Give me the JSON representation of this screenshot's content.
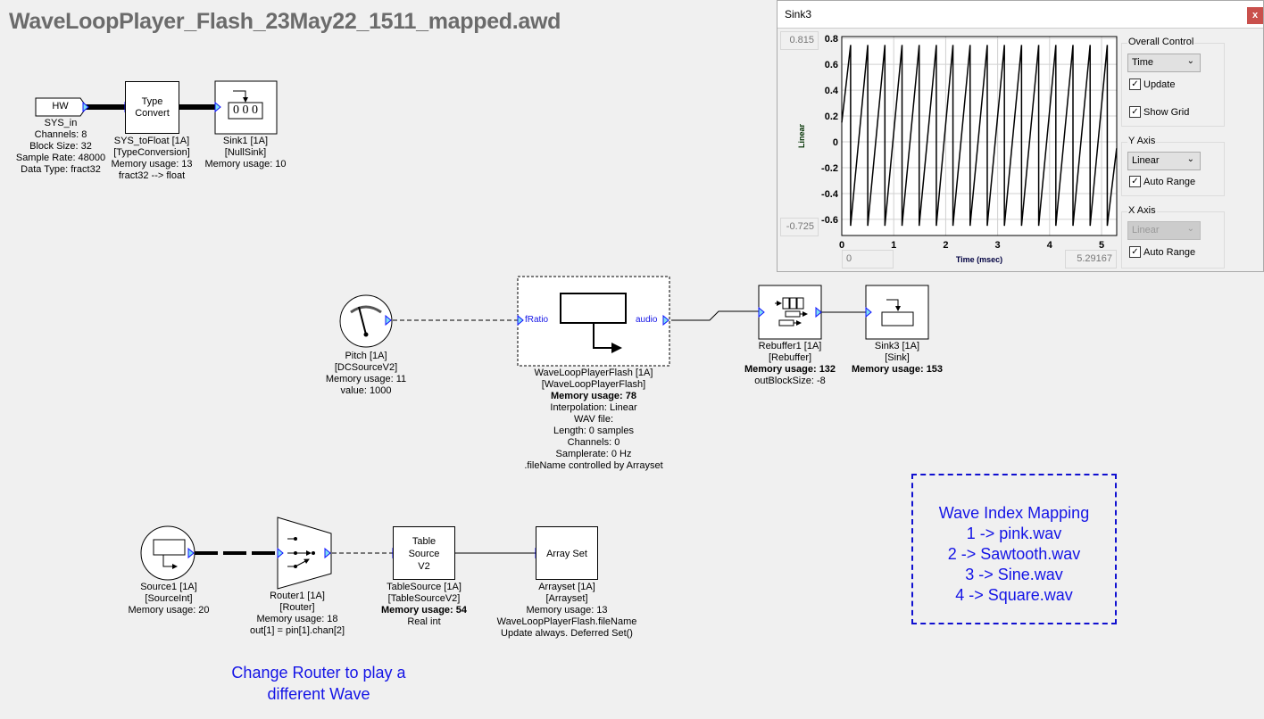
{
  "title": "WaveLoopPlayer_Flash_23May22_1511_mapped.awd",
  "blocks": {
    "sys_in": {
      "icon_text": "HW",
      "lines": [
        "SYS_in",
        "Channels: 8",
        "Block Size: 32",
        "Sample Rate: 48000",
        "Data Type: fract32"
      ]
    },
    "sys_tofloat": {
      "icon_text": [
        "Type",
        "Convert"
      ],
      "lines": [
        "SYS_toFloat [1A]",
        "[TypeConversion]",
        "Memory usage: 13",
        "fract32 --> float"
      ]
    },
    "sink1": {
      "icon_text": "0 0 0",
      "lines": [
        "Sink1 [1A]",
        "[NullSink]",
        "Memory usage: 10"
      ]
    },
    "pitch": {
      "lines": [
        "Pitch [1A]",
        "[DCSourceV2]",
        "Memory usage: 11",
        "value: 1000"
      ]
    },
    "waveloop": {
      "pin_in": "fRatio",
      "pin_out": "audio",
      "lines": [
        "WaveLoopPlayerFlash [1A]",
        "[WaveLoopPlayerFlash]"
      ],
      "memory": "Memory usage: 78",
      "details": [
        "Interpolation: Linear",
        "WAV file:",
        "Length: 0 samples",
        "Channels: 0",
        "Samplerate: 0 Hz",
        ".fileName controlled by Arrayset"
      ]
    },
    "rebuffer1": {
      "lines": [
        "Rebuffer1 [1A]",
        "[Rebuffer]"
      ],
      "memory": "Memory usage: 132",
      "details": [
        "outBlockSize: -8"
      ]
    },
    "sink3": {
      "lines": [
        "Sink3 [1A]",
        "[Sink]"
      ],
      "memory": "Memory usage: 153"
    },
    "source1": {
      "lines": [
        "Source1 [1A]",
        "[SourceInt]",
        "Memory usage: 20"
      ]
    },
    "router1": {
      "lines": [
        "Router1 [1A]",
        "[Router]",
        "Memory usage: 18",
        "out[1] = pin[1].chan[2]"
      ]
    },
    "tablesource": {
      "icon_text": [
        "Table",
        "Source",
        "V2"
      ],
      "lines": [
        "TableSource [1A]",
        "[TableSourceV2]"
      ],
      "memory": "Memory usage: 54",
      "details": [
        "Real int"
      ]
    },
    "arrayset": {
      "icon_text": "Array Set",
      "lines": [
        "Arrayset [1A]",
        "[Arrayset]",
        "Memory usage: 13",
        "WaveLoopPlayerFlash.fileName",
        "Update always. Deferred Set()"
      ]
    }
  },
  "note": {
    "lines": [
      "Wave Index Mapping",
      "1 -> pink.wav",
      "2 -> Sawtooth.wav",
      "3 -> Sine.wav",
      "4 -> Square.wav"
    ],
    "color": "#1414e6"
  },
  "hint": {
    "lines": [
      "Change Router to play a",
      "different Wave"
    ]
  },
  "scope_window": {
    "title": "Sink3",
    "close_label": "x",
    "y_max_box": "0.815",
    "y_min_box": "-0.725",
    "x_min_box": "0",
    "x_max_box": "5.29167",
    "overall_control": {
      "label": "Overall Control",
      "mode": "Time",
      "update_label": "Update",
      "update": true,
      "grid_label": "Show Grid",
      "grid": true
    },
    "y_axis": {
      "label": "Y Axis",
      "scale": "Linear",
      "auto_range_label": "Auto Range",
      "auto_range": true
    },
    "x_axis": {
      "label": "X Axis",
      "scale": "Linear",
      "disabled": true,
      "auto_range_label": "Auto Range",
      "auto_range": true
    }
  },
  "chart_data": {
    "type": "line",
    "title": "",
    "xlabel": "Time (msec)",
    "ylabel": "Linear",
    "xlim": [
      0,
      5.29167
    ],
    "ylim": [
      -0.725,
      0.815
    ],
    "xticks": [
      "0",
      "1",
      "2",
      "3",
      "4",
      "5"
    ],
    "yticks": [
      "0.8",
      "0.6",
      "0.4",
      "0.2",
      "0",
      "-0.2",
      "-0.4",
      "-0.6"
    ],
    "grid": true,
    "line_color": "#000000",
    "points": [
      [
        0,
        0.15
      ],
      [
        0.17,
        0.75
      ],
      [
        0.17,
        -0.65
      ],
      [
        0.5,
        0.75
      ],
      [
        0.5,
        -0.65
      ],
      [
        0.83,
        0.75
      ],
      [
        0.83,
        -0.65
      ],
      [
        1.16,
        0.75
      ],
      [
        1.16,
        -0.65
      ],
      [
        1.49,
        0.75
      ],
      [
        1.49,
        -0.65
      ],
      [
        1.82,
        0.75
      ],
      [
        1.82,
        -0.65
      ],
      [
        2.14,
        0.75
      ],
      [
        2.14,
        -0.65
      ],
      [
        2.47,
        0.75
      ],
      [
        2.47,
        -0.65
      ],
      [
        2.8,
        0.75
      ],
      [
        2.8,
        -0.65
      ],
      [
        3.13,
        0.75
      ],
      [
        3.13,
        -0.65
      ],
      [
        3.46,
        0.75
      ],
      [
        3.46,
        -0.65
      ],
      [
        3.79,
        0.75
      ],
      [
        3.79,
        -0.65
      ],
      [
        4.12,
        0.75
      ],
      [
        4.12,
        -0.65
      ],
      [
        4.45,
        0.75
      ],
      [
        4.45,
        -0.65
      ],
      [
        4.78,
        0.75
      ],
      [
        4.78,
        -0.65
      ],
      [
        5.11,
        0.75
      ],
      [
        5.11,
        -0.65
      ],
      [
        5.29,
        -0.05
      ]
    ]
  }
}
